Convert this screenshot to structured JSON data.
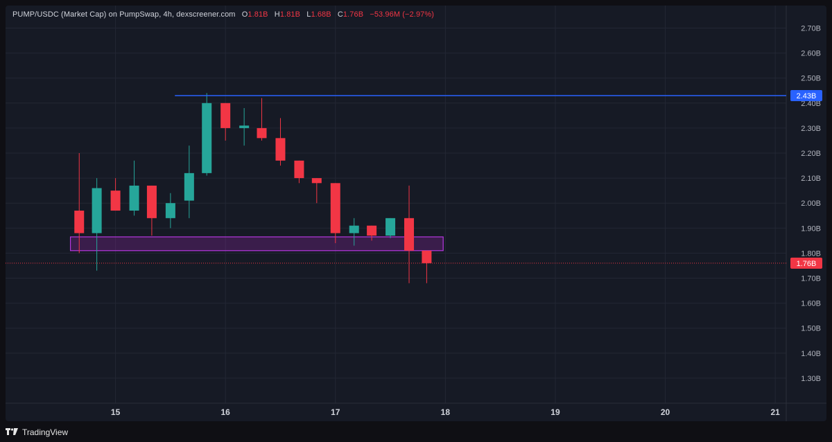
{
  "header": {
    "title": "PUMP/USDC (Market Cap) on PumpSwap, 4h, dexscreener.com",
    "o_label": "O",
    "o_value": "1.81B",
    "h_label": "H",
    "h_value": "1.81B",
    "l_label": "L",
    "l_value": "1.68B",
    "c_label": "C",
    "c_value": "1.76B",
    "change": "−53.96M (−2.97%)"
  },
  "footer": {
    "brand": "TradingView",
    "logo_icon": "tradingview-logo-icon"
  },
  "colors": {
    "up": "#26a69a",
    "down": "#f23645",
    "resistance_line": "#2962ff",
    "zone_border": "#b637e0",
    "zone_fill": "rgba(156,39,176,0.28)",
    "price_line": "#f23645"
  },
  "chart_data": {
    "type": "candlestick",
    "y_unit": "B",
    "ylim": [
      1.2,
      2.79
    ],
    "y_ticks": [
      "1.30B",
      "1.40B",
      "1.50B",
      "1.60B",
      "1.70B",
      "1.80B",
      "1.90B",
      "2.00B",
      "2.10B",
      "2.20B",
      "2.30B",
      "2.40B",
      "2.50B",
      "2.60B",
      "2.70B"
    ],
    "x_ticks": [
      "15",
      "16",
      "17",
      "18",
      "19",
      "20",
      "21"
    ],
    "xlim": [
      14.0,
      21.1
    ],
    "grid": true,
    "candles": [
      {
        "t": 14.67,
        "o": 1.97,
        "h": 2.2,
        "l": 1.8,
        "c": 1.88
      },
      {
        "t": 14.83,
        "o": 1.88,
        "h": 2.1,
        "l": 1.73,
        "c": 2.06
      },
      {
        "t": 15.0,
        "o": 2.05,
        "h": 2.1,
        "l": 1.97,
        "c": 1.97
      },
      {
        "t": 15.17,
        "o": 1.97,
        "h": 2.17,
        "l": 1.95,
        "c": 2.07
      },
      {
        "t": 15.33,
        "o": 2.07,
        "h": 2.07,
        "l": 1.87,
        "c": 1.94
      },
      {
        "t": 15.5,
        "o": 1.94,
        "h": 2.04,
        "l": 1.9,
        "c": 2.0
      },
      {
        "t": 15.67,
        "o": 2.01,
        "h": 2.23,
        "l": 1.94,
        "c": 2.12
      },
      {
        "t": 15.83,
        "o": 2.12,
        "h": 2.44,
        "l": 2.11,
        "c": 2.4
      },
      {
        "t": 16.0,
        "o": 2.4,
        "h": 2.4,
        "l": 2.25,
        "c": 2.3
      },
      {
        "t": 16.17,
        "o": 2.3,
        "h": 2.38,
        "l": 2.23,
        "c": 2.31
      },
      {
        "t": 16.33,
        "o": 2.3,
        "h": 2.42,
        "l": 2.25,
        "c": 2.26
      },
      {
        "t": 16.5,
        "o": 2.26,
        "h": 2.34,
        "l": 2.15,
        "c": 2.17
      },
      {
        "t": 16.67,
        "o": 2.17,
        "h": 2.17,
        "l": 2.08,
        "c": 2.1
      },
      {
        "t": 16.83,
        "o": 2.1,
        "h": 2.1,
        "l": 2.0,
        "c": 2.08
      },
      {
        "t": 17.0,
        "o": 2.08,
        "h": 2.08,
        "l": 1.84,
        "c": 1.88
      },
      {
        "t": 17.17,
        "o": 1.88,
        "h": 1.94,
        "l": 1.83,
        "c": 1.91
      },
      {
        "t": 17.33,
        "o": 1.91,
        "h": 1.91,
        "l": 1.85,
        "c": 1.87
      },
      {
        "t": 17.5,
        "o": 1.87,
        "h": 1.94,
        "l": 1.86,
        "c": 1.94
      },
      {
        "t": 17.67,
        "o": 1.94,
        "h": 2.07,
        "l": 1.68,
        "c": 1.81
      },
      {
        "t": 17.83,
        "o": 1.81,
        "h": 1.81,
        "l": 1.68,
        "c": 1.76
      }
    ],
    "resistance": {
      "value": 2.43,
      "label": "2.43B",
      "from_t": 15.54
    },
    "support_zone": {
      "y_low": 1.81,
      "y_high": 1.865,
      "t_from": 14.59,
      "t_to": 17.98
    },
    "last_price": {
      "value": 1.76,
      "label": "1.76B"
    }
  }
}
